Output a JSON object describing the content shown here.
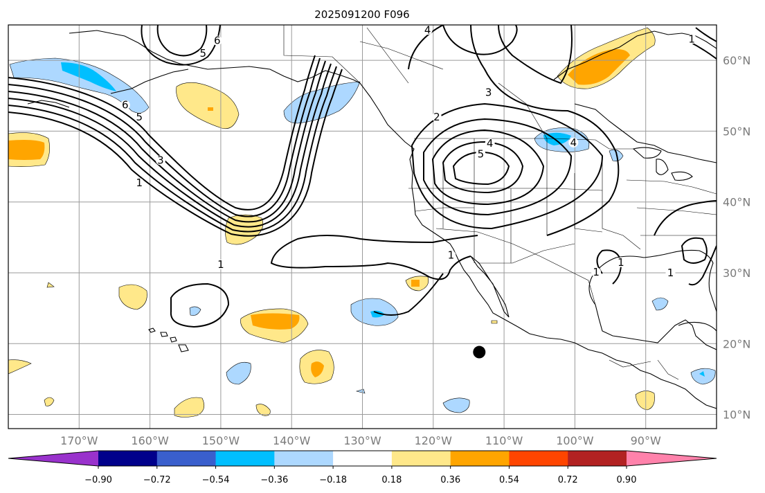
{
  "title": "2025091200 F096",
  "map": {
    "lon_range": [
      -180,
      -80
    ],
    "lat_range": [
      8,
      65
    ],
    "lon_ticks": [
      {
        "value": -170,
        "label": "170°W"
      },
      {
        "value": -160,
        "label": "160°W"
      },
      {
        "value": -150,
        "label": "150°W"
      },
      {
        "value": -140,
        "label": "140°W"
      },
      {
        "value": -130,
        "label": "130°W"
      },
      {
        "value": -120,
        "label": "120°W"
      },
      {
        "value": -110,
        "label": "110°W"
      },
      {
        "value": -100,
        "label": "100°W"
      },
      {
        "value": -90,
        "label": "90°W"
      }
    ],
    "lat_ticks": [
      {
        "value": 10,
        "label": "10°N"
      },
      {
        "value": 20,
        "label": "20°N"
      },
      {
        "value": 30,
        "label": "30°N"
      },
      {
        "value": 40,
        "label": "40°N"
      },
      {
        "value": 50,
        "label": "50°N"
      },
      {
        "value": 60,
        "label": "60°N"
      }
    ],
    "grid": true,
    "marker": {
      "lon": -113.5,
      "lat": 18.8
    }
  },
  "contour_labels": [
    {
      "text": "5",
      "lon": -152.5,
      "lat": 60.5
    },
    {
      "text": "6",
      "lon": -150.5,
      "lat": 62.3
    },
    {
      "text": "6",
      "lon": -163.5,
      "lat": 53.2
    },
    {
      "text": "5",
      "lon": -161.5,
      "lat": 51.5
    },
    {
      "text": "3",
      "lon": -158.5,
      "lat": 45.4
    },
    {
      "text": "1",
      "lon": -161.5,
      "lat": 42.2
    },
    {
      "text": "4",
      "lon": -120.8,
      "lat": 63.8
    },
    {
      "text": "3",
      "lon": -112.2,
      "lat": 55.0
    },
    {
      "text": "2",
      "lon": -119.5,
      "lat": 51.5
    },
    {
      "text": "4",
      "lon": -112.0,
      "lat": 47.8
    },
    {
      "text": "5",
      "lon": -113.3,
      "lat": 46.3
    },
    {
      "text": "4",
      "lon": -100.2,
      "lat": 47.9
    },
    {
      "text": "1",
      "lon": -150.0,
      "lat": 30.7
    },
    {
      "text": "1",
      "lon": -117.5,
      "lat": 32.0
    },
    {
      "text": "1",
      "lon": -86.5,
      "lat": 29.5
    },
    {
      "text": "1",
      "lon": -97.0,
      "lat": 29.6
    },
    {
      "text": "1",
      "lon": -93.5,
      "lat": 31.0
    },
    {
      "text": "1",
      "lon": -83.5,
      "lat": 62.5
    }
  ],
  "colorbar": {
    "colors": [
      "#9932cc",
      "#00008b",
      "#3a5fcd",
      "#00bfff",
      "#add8ff",
      "#ffffff",
      "#ffe88a",
      "#ffa500",
      "#ff4500",
      "#b22222",
      "#ff82ab"
    ],
    "tick_labels": [
      "−0.90",
      "−0.72",
      "−0.54",
      "−0.36",
      "−0.18",
      "0.18",
      "0.36",
      "0.54",
      "0.72",
      "0.90"
    ]
  }
}
